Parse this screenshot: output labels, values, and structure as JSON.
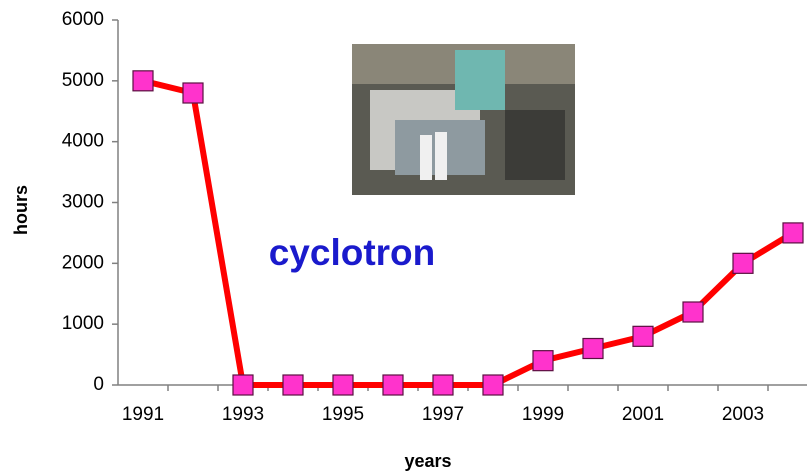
{
  "chart_data": {
    "type": "line",
    "annotation": "cyclotron",
    "x_label": "years",
    "y_label": "hours",
    "categories": [
      "1991",
      null,
      "1993",
      null,
      "1995",
      null,
      "1997",
      null,
      "1999",
      null,
      "2001",
      null,
      "2003",
      null
    ],
    "values": [
      5000,
      4800,
      0,
      0,
      0,
      0,
      0,
      0,
      400,
      600,
      800,
      1200,
      2000,
      2500
    ],
    "color": "#ff0000",
    "marker_color": "#ff33cc",
    "ylim": [
      0,
      6000
    ],
    "yticks": [
      0,
      1000,
      2000,
      3000,
      4000,
      5000,
      6000
    ]
  }
}
